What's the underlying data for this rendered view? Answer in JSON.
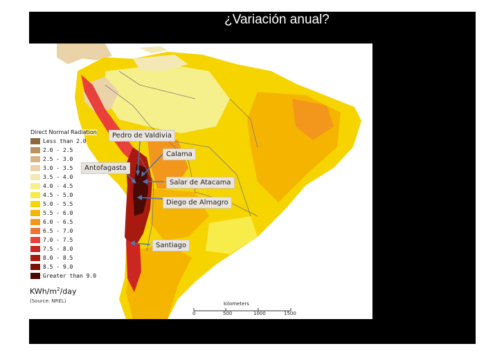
{
  "slide": {
    "title": "¿Variación anual?",
    "background_color": "#000000",
    "title_color": "#ffffff"
  },
  "map": {
    "legend_title": "Direct Normal Radiation",
    "legend": [
      {
        "label": "Less than 2.0",
        "color": "#8a6a3c"
      },
      {
        "label": "2.0 - 2.5",
        "color": "#b8935e"
      },
      {
        "label": "2.5 - 3.0",
        "color": "#d6b585"
      },
      {
        "label": "3.0 - 3.5",
        "color": "#ead3a8"
      },
      {
        "label": "3.5 - 4.0",
        "color": "#f3e8b6"
      },
      {
        "label": "4.0 - 4.5",
        "color": "#f5f08c"
      },
      {
        "label": "4.5 - 5.0",
        "color": "#f7ec4a"
      },
      {
        "label": "5.0 - 5.5",
        "color": "#f6d400"
      },
      {
        "label": "5.5 - 6.0",
        "color": "#f5b400"
      },
      {
        "label": "6.0 - 6.5",
        "color": "#f2961c"
      },
      {
        "label": "6.5 - 7.0",
        "color": "#ee7436"
      },
      {
        "label": "7.0 - 7.5",
        "color": "#e8403a"
      },
      {
        "label": "7.5 - 8.0",
        "color": "#cc2622"
      },
      {
        "label": "8.0 - 8.5",
        "color": "#a8190f"
      },
      {
        "label": "8.5 - 9.0",
        "color": "#7a120a"
      },
      {
        "label": "Greater than 9.0",
        "color": "#4a0a04"
      }
    ],
    "unit_base": "KWh/m",
    "unit_exp": "2",
    "unit_tail": "/day",
    "source": "(Source: NREL)",
    "scale": {
      "title": "kilometers",
      "ticks": [
        "0",
        "500",
        "1000",
        "1500"
      ]
    },
    "callouts": [
      {
        "id": "pedro-de-valdivia",
        "label": "Pedro de Valdivia"
      },
      {
        "id": "calama",
        "label": "Calama"
      },
      {
        "id": "antofagasta",
        "label": "Antofagasta"
      },
      {
        "id": "salar-de-atacama",
        "label": "Salar de Atacama"
      },
      {
        "id": "diego-de-almagro",
        "label": "Diego de Almagro"
      },
      {
        "id": "santiago",
        "label": "Santiago"
      }
    ],
    "colors": {
      "ocean": "#ffffff",
      "land_base": "#f6d400",
      "arrow": "#4a78b8",
      "border": "#7f7a74"
    }
  }
}
